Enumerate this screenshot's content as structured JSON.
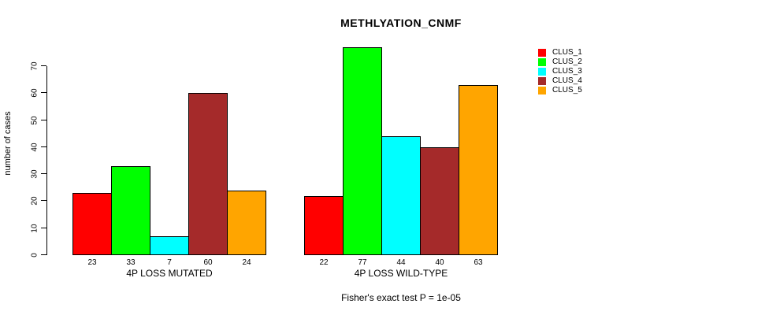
{
  "chart_data": {
    "type": "bar",
    "title": "METHLYATION_CNMF",
    "ylabel": "number of cases",
    "xlabel": "",
    "ylim": [
      0,
      70
    ],
    "yticks": [
      0,
      10,
      20,
      30,
      40,
      50,
      60,
      70
    ],
    "grid": false,
    "legend_position": "right",
    "categories": [
      "4P LOSS MUTATED",
      "4P LOSS WILD-TYPE"
    ],
    "series": [
      {
        "name": "CLUS_1",
        "color": "#ff0000",
        "values": [
          23,
          22
        ]
      },
      {
        "name": "CLUS_2",
        "color": "#00ff00",
        "values": [
          33,
          77
        ]
      },
      {
        "name": "CLUS_3",
        "color": "#00ffff",
        "values": [
          7,
          44
        ]
      },
      {
        "name": "CLUS_4",
        "color": "#a52a2a",
        "values": [
          60,
          40
        ]
      },
      {
        "name": "CLUS_5",
        "color": "#ffa500",
        "values": [
          24,
          63
        ]
      }
    ],
    "annotation": "Fisher's exact test P = 1e-05"
  }
}
